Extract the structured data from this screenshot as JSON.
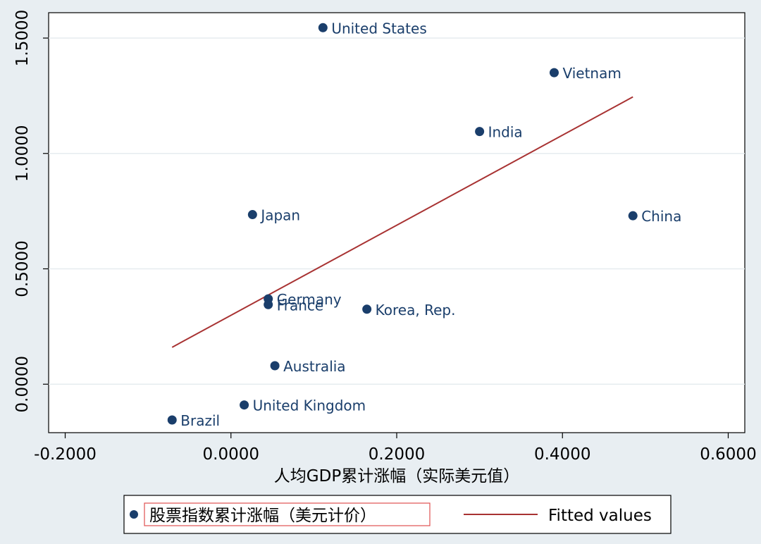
{
  "chart_data": {
    "type": "scatter",
    "xlabel": "人均GDP累计涨幅（实际美元值）",
    "ylabel": "",
    "xlim": [
      -0.22,
      0.62
    ],
    "ylim": [
      -0.21,
      1.61
    ],
    "xticks": [
      "-0.2000",
      "0.0000",
      "0.2000",
      "0.4000",
      "0.6000"
    ],
    "xtick_values": [
      -0.2,
      0.0,
      0.2,
      0.4,
      0.6
    ],
    "yticks": [
      "0.0000",
      "0.5000",
      "1.0000",
      "1.5000"
    ],
    "ytick_values": [
      0.0,
      0.5,
      1.0,
      1.5
    ],
    "grid": "horizontal",
    "series": [
      {
        "name": "股票指数累计涨幅（美元计价）",
        "color": "#1a3e6b",
        "points": [
          {
            "label": "United States",
            "x": 0.111,
            "y": 1.545
          },
          {
            "label": "Vietnam",
            "x": 0.39,
            "y": 1.35
          },
          {
            "label": "India",
            "x": 0.3,
            "y": 1.095
          },
          {
            "label": "Japan",
            "x": 0.026,
            "y": 0.735
          },
          {
            "label": "China",
            "x": 0.485,
            "y": 0.73
          },
          {
            "label": "Germany",
            "x": 0.045,
            "y": 0.37
          },
          {
            "label": "France",
            "x": 0.045,
            "y": 0.345
          },
          {
            "label": "Korea, Rep.",
            "x": 0.164,
            "y": 0.325
          },
          {
            "label": "Australia",
            "x": 0.053,
            "y": 0.08
          },
          {
            "label": "United Kingdom",
            "x": 0.016,
            "y": -0.09
          },
          {
            "label": "Brazil",
            "x": -0.071,
            "y": -0.155
          }
        ]
      },
      {
        "name": "Fitted values",
        "type": "line",
        "color": "#a83232",
        "x": [
          -0.071,
          0.485
        ],
        "y": [
          0.16,
          1.245
        ]
      }
    ],
    "legend": {
      "placement": "bottom",
      "entries": [
        "股票指数累计涨幅（美元计价）",
        "Fitted values"
      ]
    }
  }
}
